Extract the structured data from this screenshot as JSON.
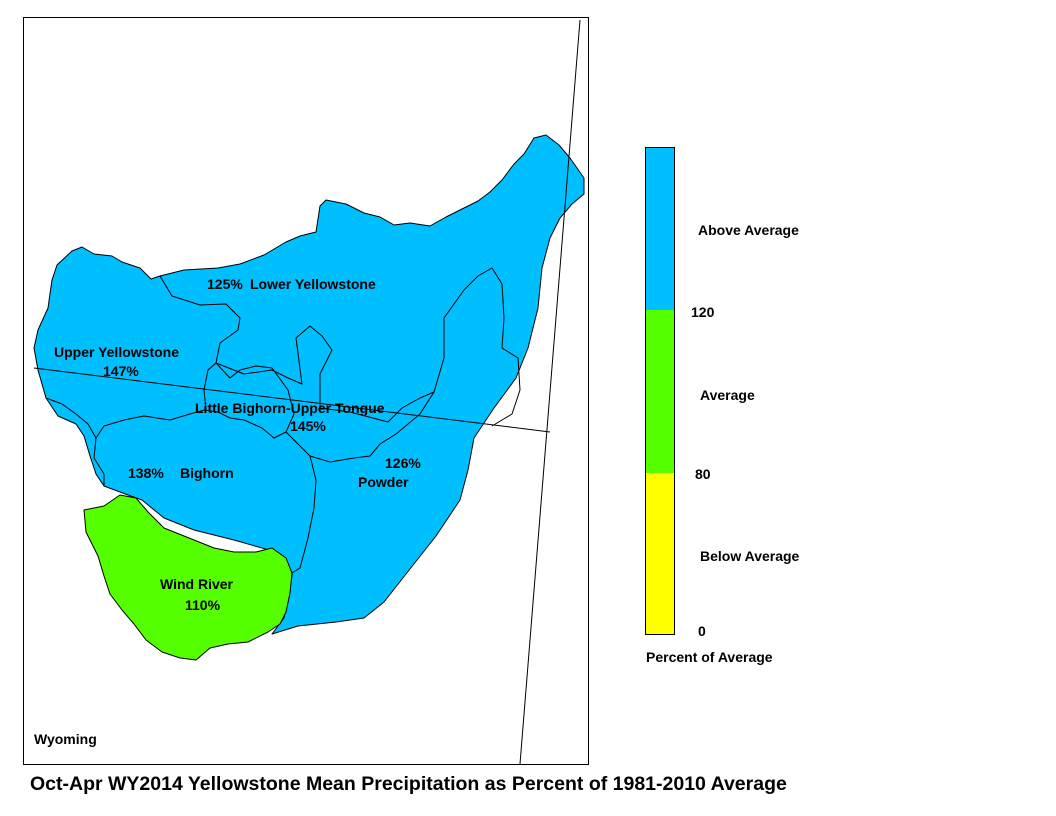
{
  "map": {
    "state_label": "Wyoming",
    "colors": {
      "above": "#00bfff",
      "average": "#55ff00",
      "below": "#ffff00",
      "outline": "#000000"
    },
    "basins": [
      {
        "name": "Lower Yellowstone",
        "percent": "125%",
        "category": "above"
      },
      {
        "name": "Upper Yellowstone",
        "percent": "147%",
        "category": "above"
      },
      {
        "name": "Little Bighorn-Upper Tongue",
        "percent": "145%",
        "category": "above"
      },
      {
        "name": "Bighorn",
        "percent": "138%",
        "category": "above"
      },
      {
        "name": "Powder",
        "percent": "126%",
        "category": "above"
      },
      {
        "name": "Wind River",
        "percent": "110%",
        "category": "average"
      }
    ]
  },
  "legend": {
    "title": "Percent of Average",
    "classes": [
      {
        "label": "Above Average",
        "color": "#00bfff"
      },
      {
        "label": "Average",
        "color": "#55ff00"
      },
      {
        "label": "Below Average",
        "color": "#ffff00"
      }
    ],
    "breaks": [
      "120",
      "80",
      "0"
    ]
  },
  "title": "Oct-Apr WY2014 Yellowstone Mean Precipitation as Percent of 1981-2010 Average"
}
